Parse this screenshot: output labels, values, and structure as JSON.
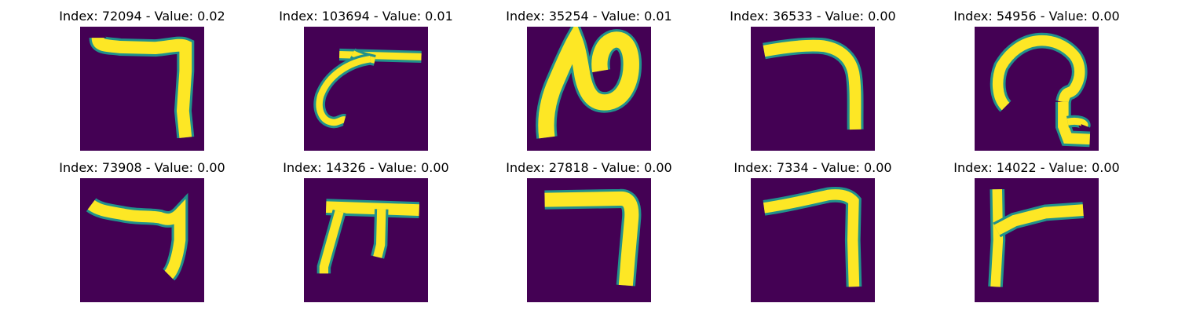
{
  "figure": {
    "background_color": "#440154",
    "stroke_color": "#fde725",
    "edge_color": "#21918c",
    "panels": [
      {
        "title": "Index: 72094 - Value: 0.02",
        "index": 72094,
        "value": 0.02,
        "glyph": "hook-down-right"
      },
      {
        "title": "Index: 103694 - Value: 0.01",
        "index": 103694,
        "value": 0.01,
        "glyph": "line-with-curl-left"
      },
      {
        "title": "Index: 35254 - Value: 0.01",
        "index": 35254,
        "value": 0.01,
        "glyph": "loop-n-shape"
      },
      {
        "title": "Index: 36533 - Value: 0.00",
        "index": 36533,
        "value": 0.0,
        "glyph": "arc-down-right"
      },
      {
        "title": "Index: 54956 - Value: 0.00",
        "index": 54956,
        "value": 0.0,
        "glyph": "spiral-hook"
      },
      {
        "title": "Index: 73908 - Value: 0.00",
        "index": 73908,
        "value": 0.0,
        "glyph": "hook-down-right-short"
      },
      {
        "title": "Index: 14326 - Value: 0.00",
        "index": 14326,
        "value": 0.0,
        "glyph": "pi-shape"
      },
      {
        "title": "Index: 27818 - Value: 0.00",
        "index": 27818,
        "value": 0.0,
        "glyph": "hook-down-right-thick"
      },
      {
        "title": "Index: 7334 - Value: 0.00",
        "index": 7334,
        "value": 0.0,
        "glyph": "hook-down-right-thin"
      },
      {
        "title": "Index: 14022 - Value: 0.00",
        "index": 14022,
        "value": 0.0,
        "glyph": "vertical-with-arm-right"
      }
    ]
  }
}
